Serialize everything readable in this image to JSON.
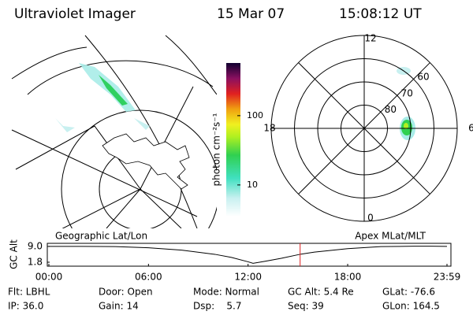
{
  "header": {
    "title": "Ultraviolet Imager",
    "date": "15 Mar 07",
    "time": "15:08:12 UT"
  },
  "panel_labels": [
    "Geographic Lat/Lon",
    "Apex MLat/MLT"
  ],
  "colorbar": {
    "label": "photon cm⁻²s⁻¹",
    "log": true,
    "lim": [
      3.5,
      575
    ],
    "ticks": [
      10,
      100
    ]
  },
  "polar_plot": {
    "rings": [
      80,
      70,
      60
    ],
    "rlim": [
      90,
      50
    ],
    "mlt": [
      12,
      18,
      6,
      0
    ]
  },
  "chart_data": {
    "type": "line",
    "y_label": "GC Alt",
    "x": [
      0,
      2,
      4,
      6,
      8,
      10,
      11,
      12,
      12.3,
      13,
      14,
      15.13,
      16,
      18,
      20,
      22,
      23,
      23.983
    ],
    "values": [
      9.0,
      9.0,
      8.9,
      8.4,
      7.3,
      5.4,
      4.0,
      2.0,
      1.3,
      2.2,
      3.6,
      5.4,
      6.4,
      8.0,
      8.9,
      9.1,
      9.1,
      9.0
    ],
    "color": "#000000",
    "marker_x": 15.136,
    "marker_color": "#e02020",
    "xlim": [
      0,
      23.983
    ],
    "ylim": [
      0,
      10.4
    ],
    "xticks": [
      {
        "value": 0,
        "label": "00:00"
      },
      {
        "value": 6,
        "label": "06:00"
      },
      {
        "value": 12,
        "label": "12:00"
      },
      {
        "value": 18,
        "label": "18:00"
      },
      {
        "value": 23.983,
        "label": "23:59"
      }
    ],
    "yticks": [
      {
        "value": 9,
        "label": "9.0"
      },
      1.8
    ]
  },
  "info": {
    "rows": [
      [
        "Flt: LBHL",
        "Door: Open",
        "Mode: Normal",
        "GC Alt: 5.4 Re",
        "GLat: -76.6"
      ],
      [
        "IP: 36.0",
        "Gain: 14",
        "Dsp:    5.7",
        "Seq: 39",
        "GLon: 164.5"
      ]
    ]
  }
}
